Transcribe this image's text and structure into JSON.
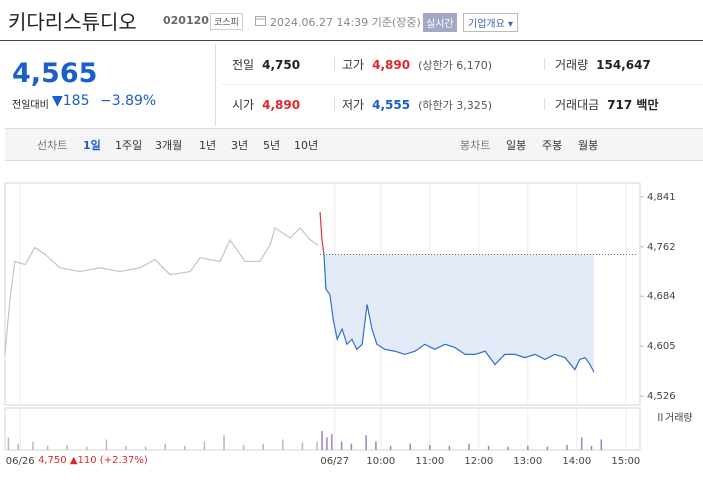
{
  "header": {
    "title": "키다리스튜디오",
    "code": "020120",
    "market": "코스피",
    "timestamp": "2024.06.27 14:39 기준(장중)",
    "realtime": "실시간",
    "company_info": "기업개요"
  },
  "quote": {
    "price": "4,565",
    "change_label": "전일대비",
    "change": "▼185",
    "change_pct": "−3.89%"
  },
  "stats": [
    {
      "label": "전일",
      "value": "4,750"
    },
    {
      "label": "고가",
      "value": "4,890",
      "note": "(상한가 6,170)"
    },
    {
      "label": "거래량",
      "value": "154,647"
    },
    {
      "label": "시가",
      "value": "4,890"
    },
    {
      "label": "저가",
      "value": "4,555",
      "note": "(하한가 3,325)"
    },
    {
      "label": "거래대금",
      "value": "717 백만"
    }
  ],
  "tabs": {
    "line_chart": "선차트",
    "line_periods": [
      "1일",
      "1주일",
      "3개월",
      "1년",
      "3년",
      "5년",
      "10년"
    ],
    "candle_chart": "봉차트",
    "candle_periods": [
      "일봉",
      "주봉",
      "월봉"
    ]
  },
  "chart_data": [
    {
      "type": "line",
      "xlim": [
        2.33,
        15.29
      ],
      "ylim": [
        4512,
        4863
      ],
      "yticks": [
        {
          "value": 4841,
          "label": "4,841"
        },
        {
          "value": 4762,
          "label": "4,762"
        },
        {
          "value": 4684,
          "label": "4,684"
        },
        {
          "value": 4605,
          "label": "4,605"
        },
        {
          "value": 4526,
          "label": "4,526"
        }
      ],
      "xticks": [
        {
          "value": 2.64,
          "label": "06/26"
        },
        {
          "value": 9.06,
          "label": "06/27"
        },
        {
          "value": 10,
          "label": "10:00"
        },
        {
          "value": 11,
          "label": "11:00"
        },
        {
          "value": 12,
          "label": "12:00"
        },
        {
          "value": 13,
          "label": "13:00"
        },
        {
          "value": 14,
          "label": "14:00"
        },
        {
          "value": 15,
          "label": "15:00"
        }
      ],
      "reference_line": 4750,
      "series": [
        {
          "color": "#c4c4c4",
          "x": [
            2.33,
            2.43,
            2.53,
            2.74,
            2.94,
            3.15,
            3.45,
            3.86,
            4.27,
            4.68,
            5.09,
            5.39,
            5.7,
            6.11,
            6.31,
            6.72,
            6.92,
            7.23,
            7.53,
            7.74,
            7.84,
            8.15,
            8.35,
            8.56,
            8.72
          ],
          "values": [
            4592,
            4679,
            4739,
            4734,
            4761,
            4750,
            4729,
            4723,
            4729,
            4723,
            4729,
            4742,
            4718,
            4723,
            4745,
            4739,
            4773,
            4739,
            4739,
            4765,
            4792,
            4776,
            4792,
            4773,
            4765
          ]
        },
        {
          "color": "#e0353b",
          "x": [
            8.76,
            8.8,
            8.84
          ],
          "values": [
            4817,
            4773,
            4750
          ]
        },
        {
          "color": "#2f6fd0",
          "fill": "#e3ebf9",
          "x": [
            8.84,
            8.88,
            8.96,
            9.03,
            9.11,
            9.21,
            9.31,
            9.41,
            9.51,
            9.62,
            9.72,
            9.82,
            9.92,
            10.08,
            10.29,
            10.49,
            10.7,
            10.9,
            11.1,
            11.31,
            11.51,
            11.72,
            11.92,
            12.13,
            12.33,
            12.53,
            12.74,
            12.94,
            13.15,
            13.35,
            13.55,
            13.76,
            13.96,
            14.06,
            14.17,
            14.27,
            14.35
          ],
          "values": [
            4750,
            4695,
            4687,
            4647,
            4616,
            4632,
            4608,
            4616,
            4600,
            4608,
            4671,
            4632,
            4608,
            4600,
            4597,
            4592,
            4597,
            4608,
            4600,
            4608,
            4603,
            4592,
            4592,
            4597,
            4576,
            4592,
            4592,
            4587,
            4592,
            4584,
            4592,
            4587,
            4568,
            4584,
            4587,
            4576,
            4564
          ]
        }
      ]
    },
    {
      "type": "bar",
      "legend": "거래량",
      "xlim": [
        2.33,
        15.29
      ],
      "ylim": [
        0,
        100
      ],
      "series": [
        {
          "color": "#b8b8b8",
          "x": [
            2.4,
            2.6,
            2.9,
            3.2,
            3.6,
            4.0,
            4.4,
            4.8,
            5.2,
            5.6,
            6.0,
            6.4,
            6.8,
            7.2,
            7.6,
            8.0,
            8.4,
            8.7
          ],
          "values": [
            30,
            15,
            20,
            10,
            12,
            8,
            25,
            10,
            8,
            15,
            10,
            20,
            35,
            12,
            15,
            25,
            18,
            20
          ]
        },
        {
          "color": "#9c82c8",
          "x": [
            8.8,
            8.9,
            9.0,
            9.2,
            9.4,
            9.7,
            9.9,
            10.2,
            10.6,
            11.0,
            11.4,
            11.8,
            12.2,
            12.6,
            13.0,
            13.4,
            13.8,
            14.1,
            14.3,
            14.5
          ],
          "values": [
            45,
            30,
            38,
            20,
            15,
            35,
            20,
            10,
            15,
            12,
            10,
            15,
            10,
            8,
            10,
            8,
            12,
            30,
            10,
            25
          ]
        }
      ]
    }
  ],
  "footer": {
    "close": "4,750",
    "change": "▲110",
    "change_pct": "(+2.37%)"
  }
}
